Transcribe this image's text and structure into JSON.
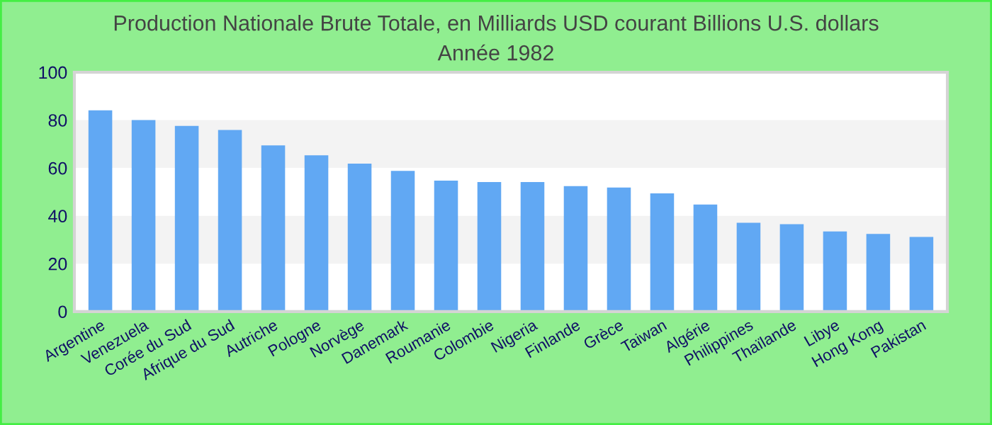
{
  "chart_data": {
    "type": "bar",
    "title": "Production Nationale Brute Totale, en Milliards USD courant Billions U.S. dollars",
    "subtitle": "Année 1982",
    "categories": [
      "Argentine",
      "Venezuela",
      "Corée du Sud",
      "Afrique du Sud",
      "Autriche",
      "Pologne",
      "Norvège",
      "Danemark",
      "Roumanie",
      "Colombie",
      "Nigeria",
      "Finlande",
      "Grèce",
      "Taiwan",
      "Algérie",
      "Philippines",
      "Thaïlande",
      "Libye",
      "Hong Kong",
      "Pakistan"
    ],
    "values": [
      84.1,
      80,
      77.6,
      75.9,
      69.4,
      65.3,
      61.8,
      58.8,
      54.7,
      54.1,
      54.1,
      52.4,
      51.8,
      49.4,
      44.7,
      37.1,
      36.5,
      33.5,
      32.4,
      31.2
    ],
    "color": "#61a8f3",
    "ylim": [
      0,
      100
    ],
    "yticks": [
      0,
      20,
      40,
      60,
      80,
      100
    ],
    "bands": [
      {
        "axis": "y",
        "from": 20,
        "to": 40,
        "color": "#f3f3f3"
      },
      {
        "axis": "y",
        "from": 60,
        "to": 80,
        "color": "#f3f3f3"
      }
    ]
  }
}
